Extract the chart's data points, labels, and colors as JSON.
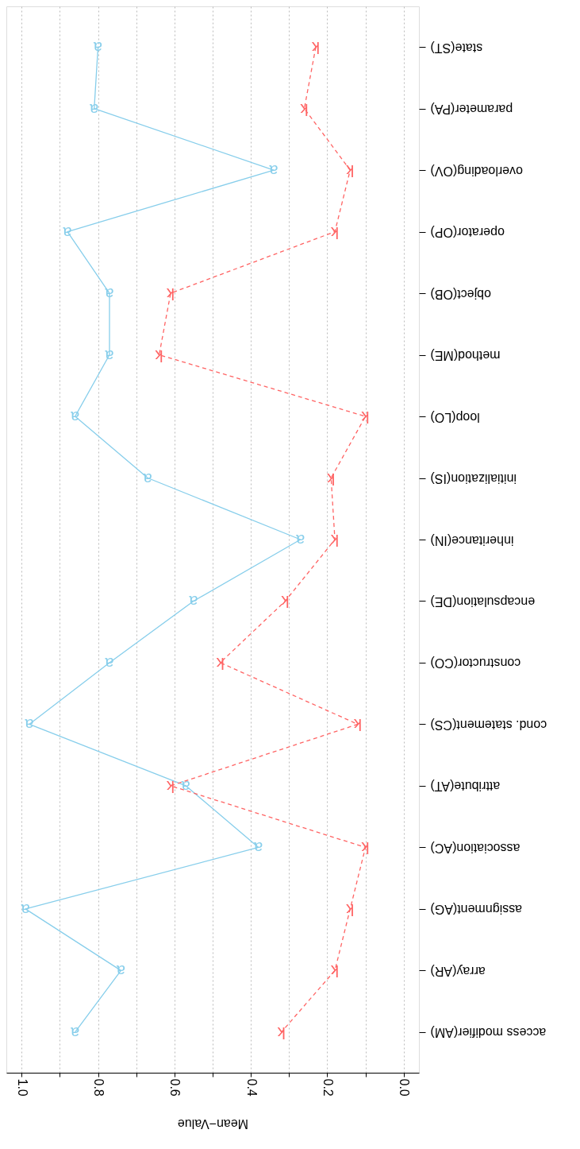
{
  "chart_data": {
    "type": "line",
    "orientation": "horizontal",
    "xlabel": "Mean−Value",
    "categories": [
      "state(ST)",
      "parameter(PA)",
      "overloading(OV)",
      "operator(OP)",
      "object(OB)",
      "method(ME)",
      "loop(LO)",
      "initialization(IS)",
      "inheritance(IN)",
      "encapsulation(DE)",
      "constructor(CO)",
      "cond. statement(CS)",
      "attribute(AT)",
      "association(AC)",
      "assignment(AG)",
      "array(AR)",
      "access modifier(AM)"
    ],
    "series": [
      {
        "name": "a",
        "color": "#87ceeb",
        "line_style": "solid",
        "values": [
          0.8,
          0.81,
          0.34,
          0.88,
          0.77,
          0.77,
          0.86,
          0.67,
          0.27,
          0.55,
          0.77,
          0.98,
          0.57,
          0.38,
          0.99,
          0.74,
          0.86
        ]
      },
      {
        "name": "k",
        "color": "#ff6464",
        "line_style": "dashed",
        "values": [
          0.23,
          0.26,
          0.14,
          0.18,
          0.61,
          0.64,
          0.1,
          0.19,
          0.18,
          0.31,
          0.48,
          0.12,
          0.61,
          0.1,
          0.14,
          0.18,
          0.32
        ]
      }
    ],
    "xlim": [
      1.04,
      -0.04
    ],
    "xticks": [
      {
        "value": 1.0,
        "label": "1.0"
      },
      {
        "value": 0.9,
        "label": null
      },
      {
        "value": 0.8,
        "label": "0.8"
      },
      {
        "value": 0.7,
        "label": null
      },
      {
        "value": 0.6,
        "label": "0.6"
      },
      {
        "value": 0.5,
        "label": null
      },
      {
        "value": 0.4,
        "label": "0.4"
      },
      {
        "value": 0.3,
        "label": null
      },
      {
        "value": 0.2,
        "label": "0.2"
      },
      {
        "value": 0.1,
        "label": null
      },
      {
        "value": 0.0,
        "label": "0.0"
      }
    ],
    "grid": "x",
    "marker": "none"
  }
}
